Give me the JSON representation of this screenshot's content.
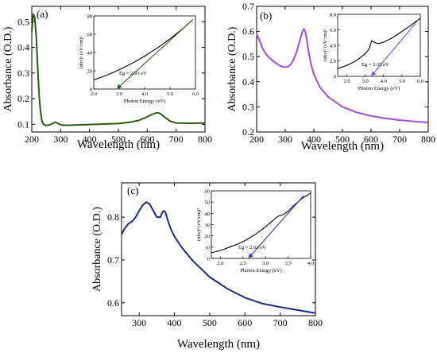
{
  "chart_data": [
    {
      "type": "line",
      "panel_label": "(a)",
      "xlabel": "Wavelength (nm)",
      "ylabel": "Absorbance (O.D.)",
      "xlim": [
        200,
        800
      ],
      "ylim": [
        0.07,
        0.56
      ],
      "xticks": [
        "200",
        "300",
        "400",
        "500",
        "600",
        "700",
        "800"
      ],
      "yticks": [
        "0.1",
        "0.2",
        "0.3",
        "0.4",
        "0.5"
      ],
      "colors": {
        "series": "#2d5a16"
      },
      "series": [
        {
          "x": [
            200,
            205,
            210,
            215,
            220,
            225,
            230,
            235,
            240,
            245,
            250,
            260,
            270,
            280,
            290,
            300,
            320,
            350,
            400,
            450,
            500,
            540,
            570,
            590,
            610,
            625,
            635,
            645,
            660,
            680,
            700,
            750,
            800
          ],
          "y": [
            0.46,
            0.53,
            0.52,
            0.45,
            0.33,
            0.22,
            0.15,
            0.115,
            0.1,
            0.097,
            0.096,
            0.097,
            0.102,
            0.108,
            0.104,
            0.098,
            0.096,
            0.097,
            0.099,
            0.101,
            0.103,
            0.108,
            0.115,
            0.124,
            0.135,
            0.143,
            0.145,
            0.142,
            0.128,
            0.112,
            0.105,
            0.104,
            0.105
          ]
        }
      ],
      "inset": {
        "xlabel": "Photon Energy (eV)",
        "ylabel": "(αhν)² (eV/cm)²",
        "xlim": [
          2.0,
          6.0
        ],
        "ylim": [
          0,
          80
        ],
        "xticks": [
          "2.0",
          "3.0",
          "4.0",
          "5.0",
          "6.0"
        ],
        "yticks": [
          "0",
          "20",
          "40",
          "60",
          "80"
        ],
        "annotation": "Eg = 2.93 eV",
        "curve": {
          "x": [
            2.0,
            2.5,
            3.0,
            3.5,
            4.0,
            4.5,
            5.0,
            5.5,
            5.9
          ],
          "y": [
            10,
            15,
            21,
            28,
            36,
            45,
            55,
            66,
            76
          ]
        },
        "fit": {
          "x": [
            2.93,
            5.9
          ],
          "y": [
            0,
            76
          ]
        }
      }
    },
    {
      "type": "line",
      "panel_label": "(b)",
      "xlabel": "Wavelength (nm)",
      "ylabel": "Absorbance (O.D.)",
      "xlim": [
        200,
        800
      ],
      "ylim": [
        0.2,
        0.7
      ],
      "xticks": [
        "200",
        "300",
        "400",
        "500",
        "600",
        "700",
        "800"
      ],
      "yticks": [
        "0.2",
        "0.3",
        "0.4",
        "0.5",
        "0.6",
        "0.7"
      ],
      "colors": {
        "series": "#9d4fd6"
      },
      "series": [
        {
          "x": [
            200,
            210,
            220,
            230,
            240,
            250,
            260,
            270,
            280,
            290,
            300,
            310,
            320,
            330,
            340,
            350,
            360,
            365,
            370,
            375,
            380,
            390,
            400,
            420,
            450,
            500,
            550,
            600,
            650,
            700,
            750,
            800
          ],
          "y": [
            0.59,
            0.565,
            0.535,
            0.515,
            0.5,
            0.49,
            0.48,
            0.472,
            0.465,
            0.46,
            0.458,
            0.46,
            0.47,
            0.49,
            0.52,
            0.56,
            0.6,
            0.61,
            0.6,
            0.57,
            0.53,
            0.47,
            0.43,
            0.38,
            0.34,
            0.3,
            0.278,
            0.264,
            0.254,
            0.247,
            0.242,
            0.238
          ]
        }
      ],
      "inset": {
        "xlabel": "Photon Energy (eV)",
        "ylabel": "(αhν)² (eV/cm)²",
        "xlim": [
          1.5,
          6.0
        ],
        "ylim": [
          0,
          8.0
        ],
        "xticks": [
          "2.0",
          "3.0",
          "4.0",
          "5.0",
          "6.0"
        ],
        "yticks": [
          "0",
          "2.0",
          "4.0",
          "6.0",
          "8.0"
        ],
        "annotation": "Eg = 3.35 eV",
        "curve": {
          "x": [
            1.5,
            2.0,
            2.5,
            3.0,
            3.2,
            3.35,
            3.5,
            3.7,
            4.0,
            4.5,
            5.0,
            5.5,
            6.0
          ],
          "y": [
            1.0,
            1.4,
            2.0,
            2.9,
            3.5,
            4.6,
            4.4,
            4.2,
            4.4,
            5.0,
            5.8,
            6.6,
            7.5
          ]
        },
        "fit": {
          "x": [
            3.35,
            5.9
          ],
          "y": [
            0,
            7.3
          ]
        }
      }
    },
    {
      "type": "line",
      "panel_label": "(c)",
      "xlabel": "Wavelength (nm)",
      "ylabel": "Absorbance (O.D.)",
      "xlim": [
        250,
        800
      ],
      "ylim": [
        0.57,
        0.88
      ],
      "xticks": [
        "300",
        "400",
        "500",
        "600",
        "700",
        "800"
      ],
      "yticks": [
        "0.6",
        "0.7",
        "0.8"
      ],
      "colors": {
        "series": "#1a2a8a"
      },
      "series": [
        {
          "x": [
            250,
            260,
            270,
            280,
            290,
            300,
            310,
            320,
            330,
            340,
            350,
            360,
            365,
            370,
            375,
            380,
            390,
            400,
            420,
            450,
            500,
            550,
            600,
            650,
            700,
            750,
            800
          ],
          "y": [
            0.76,
            0.775,
            0.785,
            0.79,
            0.8,
            0.815,
            0.828,
            0.835,
            0.83,
            0.815,
            0.8,
            0.8,
            0.81,
            0.815,
            0.81,
            0.795,
            0.772,
            0.755,
            0.73,
            0.7,
            0.66,
            0.633,
            0.612,
            0.598,
            0.59,
            0.583,
            0.576
          ]
        }
      ],
      "inset": {
        "xlabel": "Photon Energy (eV)",
        "ylabel": "(αhν)² (eV/cm)²",
        "xlim": [
          1.8,
          4.0
        ],
        "ylim": [
          0,
          60
        ],
        "xticks": [
          "2.0",
          "2.5",
          "3.0",
          "3.5",
          "4.0"
        ],
        "yticks": [
          "0",
          "10",
          "20",
          "30",
          "40",
          "50",
          "60"
        ],
        "annotation": "Eg = 2.63 eV",
        "curve": {
          "x": [
            1.8,
            2.0,
            2.2,
            2.4,
            2.6,
            2.8,
            3.0,
            3.2,
            3.3,
            3.4,
            3.5,
            3.6,
            3.8,
            4.0
          ],
          "y": [
            5,
            7,
            10,
            13,
            17,
            22,
            28,
            35,
            38,
            39,
            42,
            46,
            53,
            58
          ]
        },
        "fit": {
          "x": [
            2.63,
            3.85
          ],
          "y": [
            0,
            56
          ]
        }
      }
    }
  ]
}
